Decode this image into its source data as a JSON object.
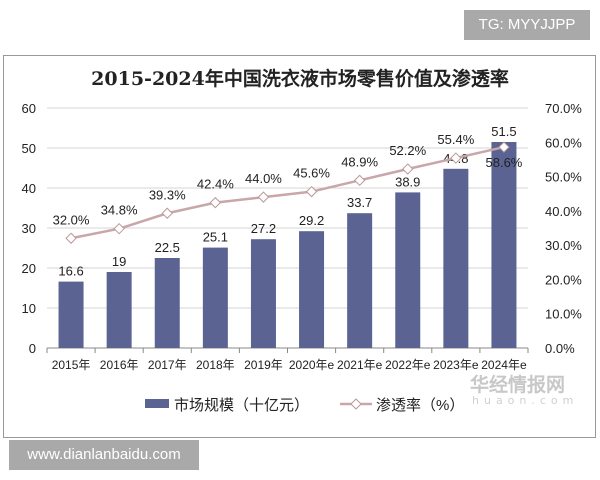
{
  "watermark_top": "TG: MYYJJPP",
  "watermark_bottom": "www.dianlanbaidu.com",
  "brand_logo": "华经情报网",
  "brand_url": "huaon.com",
  "chart_data": {
    "type": "bar+line",
    "title": "2015-2024年中国洗衣液市场零售价值及渗透率",
    "categories": [
      "2015年",
      "2016年",
      "2017年",
      "2018年",
      "2019年",
      "2020年e",
      "2021年e",
      "2022年e",
      "2023年e",
      "2024年e"
    ],
    "series": [
      {
        "name": "市场规模（十亿元）",
        "type": "bar",
        "axis": "left",
        "color": "#5a6391",
        "values": [
          16.6,
          19,
          22.5,
          25.1,
          27.2,
          29.2,
          33.7,
          38.9,
          44.8,
          51.5
        ],
        "labels": [
          "16.6",
          "19",
          "22.5",
          "25.1",
          "27.2",
          "29.2",
          "33.7",
          "38.9",
          "44.8",
          "51.5"
        ]
      },
      {
        "name": "渗透率（%）",
        "type": "line",
        "axis": "right",
        "color": "#c9a6a9",
        "values": [
          32.0,
          34.8,
          39.3,
          42.4,
          44.0,
          45.6,
          48.9,
          52.2,
          55.4,
          58.6
        ],
        "labels": [
          "32.0%",
          "34.8%",
          "39.3%",
          "42.4%",
          "44.0%",
          "45.6%",
          "48.9%",
          "52.2%",
          "55.4%",
          "58.6%"
        ]
      }
    ],
    "y_left": {
      "range": [
        0,
        60
      ],
      "ticks": [
        "0",
        "10",
        "20",
        "30",
        "40",
        "50",
        "60"
      ]
    },
    "y_right": {
      "range": [
        0,
        70
      ],
      "ticks": [
        "0.0%",
        "10.0%",
        "20.0%",
        "30.0%",
        "40.0%",
        "50.0%",
        "60.0%",
        "70.0%"
      ]
    },
    "legend": "bottom"
  }
}
